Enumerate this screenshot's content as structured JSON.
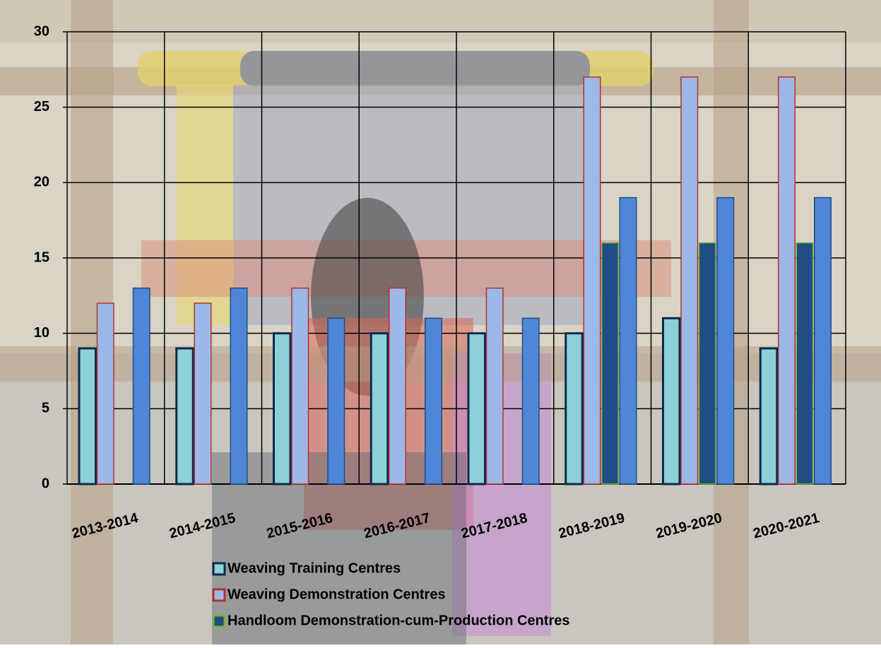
{
  "chart_data": {
    "type": "bar",
    "categories": [
      "2013-2014",
      "2014-2015",
      "2015-2016",
      "2016-2017",
      "2017-2018",
      "2018-2019",
      "2019-2020",
      "2020-2021"
    ],
    "series": [
      {
        "name": "Weaving Training Centres",
        "color": "#8ed0d8",
        "edge": "#0d2a4a",
        "values": [
          9,
          9,
          10,
          10,
          10,
          10,
          11,
          9
        ]
      },
      {
        "name": "Weaving Demonstration Centres",
        "color": "#9bb8e8",
        "edge": "#b8302b",
        "values": [
          12,
          12,
          13,
          13,
          13,
          27,
          27,
          27
        ]
      },
      {
        "name": "Handloom Demonstration-cum-Production Centres",
        "color": "#1f4e85",
        "edge": "#7fb03a",
        "values": [
          null,
          null,
          null,
          null,
          null,
          16,
          16,
          16
        ]
      },
      {
        "color": "#4f86d8",
        "edge": "#1f4e85",
        "values": [
          13,
          13,
          11,
          11,
          11,
          19,
          19,
          19
        ]
      }
    ],
    "ylim": [
      0,
      30
    ],
    "yticks": [
      0,
      5,
      10,
      15,
      20,
      25,
      30
    ],
    "grid": true
  }
}
